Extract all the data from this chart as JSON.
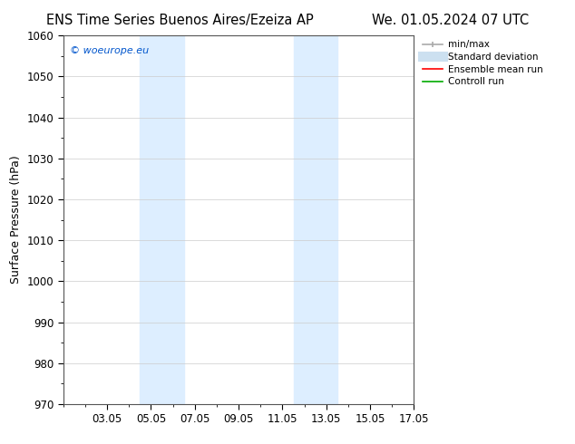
{
  "title_left": "ENS Time Series Buenos Aires/Ezeiza AP",
  "title_right": "We. 01.05.2024 07 UTC",
  "ylabel": "Surface Pressure (hPa)",
  "ylim": [
    970,
    1060
  ],
  "yticks": [
    970,
    980,
    990,
    1000,
    1010,
    1020,
    1030,
    1040,
    1050,
    1060
  ],
  "xtick_labels": [
    "03.05",
    "05.05",
    "07.05",
    "09.05",
    "11.05",
    "13.05",
    "15.05",
    "17.05"
  ],
  "xtick_positions": [
    2,
    4,
    6,
    8,
    10,
    12,
    14,
    16
  ],
  "shaded_regions": [
    {
      "x_start": 3.5,
      "x_end": 5.5,
      "color": "#ddeeff"
    },
    {
      "x_start": 10.5,
      "x_end": 12.5,
      "color": "#ddeeff"
    }
  ],
  "watermark": "© woeurope.eu",
  "watermark_color": "#0055cc",
  "legend_items": [
    {
      "label": "min/max",
      "color": "#aaaaaa",
      "lw": 1.2,
      "style": "line_with_caps"
    },
    {
      "label": "Standard deviation",
      "color": "#cce0f0",
      "lw": 8,
      "style": "thick"
    },
    {
      "label": "Ensemble mean run",
      "color": "#ff0000",
      "lw": 1.2,
      "style": "solid"
    },
    {
      "label": "Controll run",
      "color": "#00aa00",
      "lw": 1.2,
      "style": "solid"
    }
  ],
  "bg_color": "#ffffff",
  "grid_color": "#cccccc",
  "title_fontsize": 10.5,
  "axis_fontsize": 9,
  "tick_fontsize": 8.5
}
